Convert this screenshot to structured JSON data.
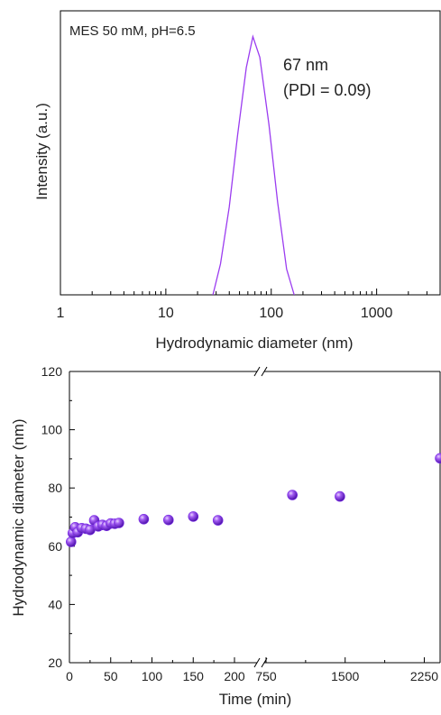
{
  "chart_data": [
    {
      "type": "line",
      "annotation_top_left": "MES 50 mM, pH=6.5",
      "peak_label": "67 nm",
      "pdi_label": "(PDI = 0.09)",
      "xlabel": "Hydrodynamic diameter (nm)",
      "ylabel": "Intensity (a.u.)",
      "x_scale": "log",
      "xlim": [
        1,
        4000
      ],
      "ylim": [
        0,
        1.1
      ],
      "x_ticks": [
        1,
        10,
        100,
        1000
      ],
      "x_tick_labels": [
        "1",
        "10",
        "100",
        "1000"
      ],
      "series": [
        {
          "color": "#9b3cf0",
          "x": [
            28,
            33,
            40,
            48,
            58,
            67,
            78,
            95,
            115,
            140,
            165
          ],
          "y": [
            0.0,
            0.12,
            0.34,
            0.62,
            0.88,
            1.0,
            0.92,
            0.66,
            0.36,
            0.1,
            0.0
          ]
        }
      ]
    },
    {
      "type": "scatter",
      "xlabel": "Time (min)",
      "ylabel": "Hydrodynamic diameter (nm)",
      "ylim": [
        20,
        120
      ],
      "y_ticks": [
        20,
        40,
        60,
        80,
        100,
        120
      ],
      "x_broken_axis": true,
      "x_segments": [
        {
          "range": [
            0,
            200
          ],
          "ticks": [
            0,
            50,
            100,
            150,
            200
          ]
        },
        {
          "range": [
            750,
            2400
          ],
          "ticks": [
            750,
            1500,
            2250
          ]
        }
      ],
      "x_tick_labels": [
        "0",
        "50",
        "100",
        "150",
        "200",
        "750",
        "1500",
        "2250"
      ],
      "series": [
        {
          "color": "#7a2ee6",
          "points": [
            [
              2,
              61.5
            ],
            [
              4,
              64.5
            ],
            [
              7,
              66.5
            ],
            [
              10,
              64.8
            ],
            [
              15,
              66.2
            ],
            [
              20,
              66.0
            ],
            [
              25,
              65.6
            ],
            [
              30,
              68.9
            ],
            [
              35,
              66.8
            ],
            [
              40,
              67.3
            ],
            [
              45,
              67.0
            ],
            [
              50,
              67.8
            ],
            [
              55,
              67.7
            ],
            [
              60,
              68.0
            ],
            [
              90,
              69.3
            ],
            [
              120,
              69.0
            ],
            [
              150,
              70.2
            ],
            [
              180,
              68.9
            ],
            [
              1000,
              77.6
            ],
            [
              1450,
              77.1
            ],
            [
              2400,
              90.2
            ]
          ]
        }
      ]
    }
  ]
}
